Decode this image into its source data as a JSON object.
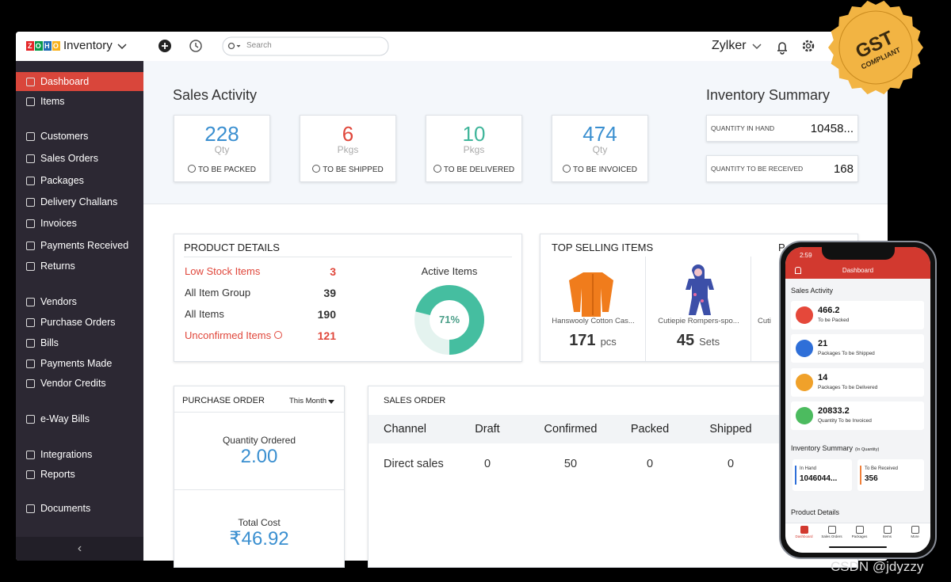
{
  "topbar": {
    "brand": "ZOHO",
    "app": "Inventory",
    "search": "Search",
    "org": "Zylker"
  },
  "sidebar": {
    "items": [
      "Dashboard",
      "Items",
      "Customers",
      "Sales Orders",
      "Packages",
      "Delivery Challans",
      "Invoices",
      "Payments Received",
      "Returns",
      "Vendors",
      "Purchase Orders",
      "Bills",
      "Payments Made",
      "Vendor Credits",
      "e-Way Bills",
      "Integrations",
      "Reports",
      "Documents"
    ],
    "active": 0
  },
  "sales_activity": {
    "title": "Sales Activity",
    "cards": [
      {
        "value": 228,
        "unit": "Qty",
        "label": "TO BE PACKED",
        "color": "#3a8fd0"
      },
      {
        "value": 6,
        "unit": "Pkgs",
        "label": "TO BE SHIPPED",
        "color": "#e0473b"
      },
      {
        "value": 10,
        "unit": "Pkgs",
        "label": "TO BE DELIVERED",
        "color": "#3fb59a"
      },
      {
        "value": 474,
        "unit": "Qty",
        "label": "TO BE INVOICED",
        "color": "#3a8fd0"
      }
    ]
  },
  "inventory_summary": {
    "title": "Inventory Summary",
    "rows": [
      {
        "label": "QUANTITY IN HAND",
        "value": "10458..."
      },
      {
        "label": "QUANTITY TO BE RECEIVED",
        "value": 168
      }
    ]
  },
  "product_details": {
    "title": "PRODUCT DETAILS",
    "rows": [
      {
        "label": "Low Stock Items",
        "value": 3,
        "alert": true
      },
      {
        "label": "All Item Group",
        "value": 39,
        "alert": false
      },
      {
        "label": "All Items",
        "value": 190,
        "alert": false
      },
      {
        "label": "Unconfirmed Items",
        "value": 121,
        "alert": true
      }
    ],
    "active_items": {
      "title": "Active Items",
      "percent": {
        "value": 71,
        "label": "71%"
      },
      "color": "#45bea0"
    }
  },
  "top_selling": {
    "title": "TOP SELLING ITEMS",
    "period": "P",
    "items": [
      {
        "name": "Hanswooly Cotton Cas...",
        "qty": 171,
        "unit": "pcs"
      },
      {
        "name": "Cutiepie Rompers-spo...",
        "qty": 45,
        "unit": "Sets"
      },
      {
        "name": "Cuti"
      }
    ]
  },
  "purchase_order": {
    "title": "PURCHASE ORDER",
    "period": "This Month",
    "quantity_label": "Quantity Ordered",
    "quantity": "2.00",
    "cost_label": "Total Cost",
    "cost": "₹46.92"
  },
  "sales_order": {
    "title": "SALES ORDER",
    "columns": [
      "Channel",
      "Draft",
      "Confirmed",
      "Packed",
      "Shipped"
    ],
    "rows": [
      [
        "Direct sales",
        0,
        50,
        0,
        0
      ]
    ]
  },
  "phone": {
    "time": "2:59",
    "title": "Dashboard",
    "section": "Sales Activity",
    "cards": [
      {
        "value": "466.2",
        "label": "To be Packed",
        "color": "#e5483a"
      },
      {
        "value": 21,
        "label": "Packages To be Shipped",
        "color": "#2f6fd8"
      },
      {
        "value": 14,
        "label": "Packages To be Delivered",
        "color": "#f0a12a"
      },
      {
        "value": "20833.2",
        "label": "Quantity To be Invoiced",
        "color": "#4cbb5f"
      }
    ],
    "summary_title": "Inventory Summary",
    "summary_note": "(In Quantity)",
    "summary": [
      {
        "label": "In Hand",
        "value": "1046044...",
        "color": "#2f6fd8"
      },
      {
        "label": "To Be Received",
        "value": 356,
        "color": "#f0803a"
      }
    ],
    "details_title": "Product Details",
    "tabs": [
      "Dashboard",
      "Sales Orders",
      "Packages",
      "Items",
      "More"
    ]
  },
  "badge": {
    "line1": "GST",
    "line2": "COMPLIANT"
  },
  "watermark": "CSDN @jdyzzy"
}
